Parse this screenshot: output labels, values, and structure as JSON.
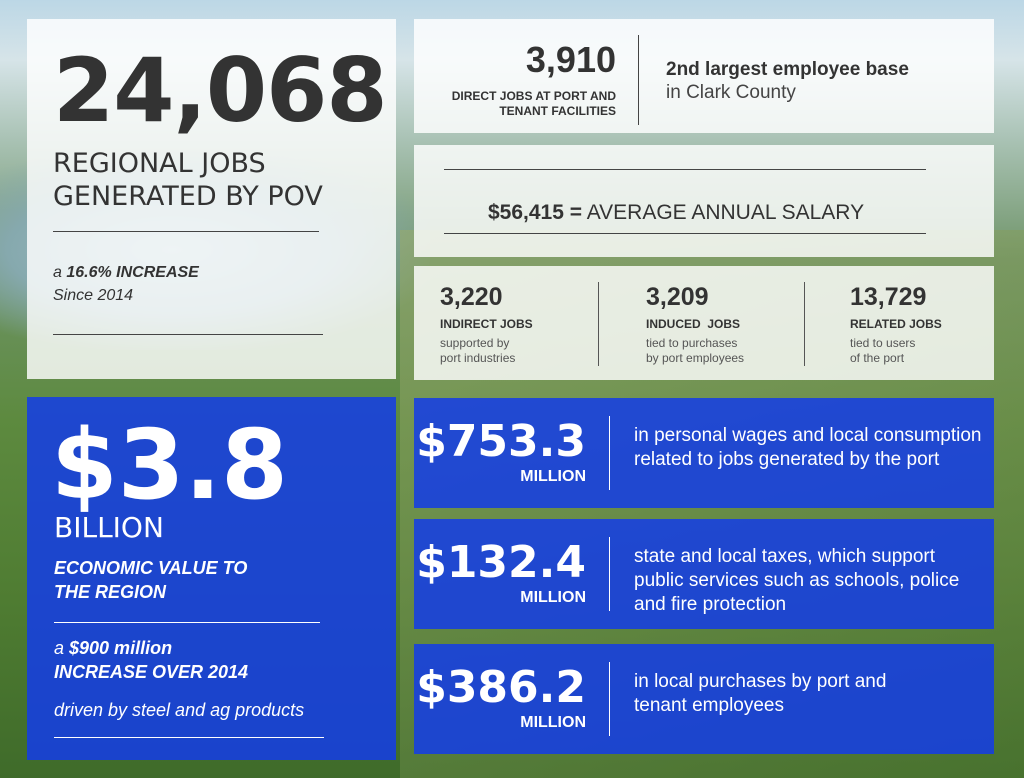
{
  "regional_jobs": {
    "number": "24,068",
    "label_line1": "REGIONAL JOBS",
    "label_line2": "GENERATED BY POV",
    "increase_prefix": "a ",
    "increase_bold": "16.6% INCREASE",
    "since": "Since 2014"
  },
  "direct_jobs": {
    "number": "3,910",
    "caption_line1": "DIRECT JOBS AT PORT AND",
    "caption_line2": "TENANT FACILITIES",
    "rank_bold": "2nd largest employee base",
    "rank_rest": "in Clark County"
  },
  "salary": {
    "amount": "$56,415 =",
    "label": " AVERAGE ANNUAL SALARY"
  },
  "job_types": [
    {
      "number": "3,220",
      "label": "INDIRECT JOBS",
      "desc1": "supported by",
      "desc2": "port industries"
    },
    {
      "number": "3,209",
      "label": "INDUCED  JOBS",
      "desc1": "tied to purchases",
      "desc2": "by port employees"
    },
    {
      "number": "13,729",
      "label": "RELATED JOBS",
      "desc1": "tied to users",
      "desc2": "of the port"
    }
  ],
  "economic_value": {
    "amount": "$3.8",
    "unit": "BILLION",
    "desc_line1": "ECONOMIC VALUE TO",
    "desc_line2": "THE REGION",
    "increase_prefix": "a ",
    "increase_bold1": "$900 million",
    "increase_bold2": "INCREASE OVER 2014",
    "driven": "driven by steel and ag products"
  },
  "impacts": [
    {
      "amount": "$753.3",
      "unit": "MILLION",
      "desc": "in personal wages and local consumption related to jobs generated by the port"
    },
    {
      "amount": "$132.4",
      "unit": "MILLION",
      "desc": "state and local taxes, which support public services such as schools, police and fire protection"
    },
    {
      "amount": "$386.2",
      "unit": "MILLION",
      "desc": "in local purchases by port and tenant employees"
    }
  ],
  "colors": {
    "blue_panel": "#143ce6",
    "white_panel": "#ffffff",
    "text_dark": "#333333"
  }
}
